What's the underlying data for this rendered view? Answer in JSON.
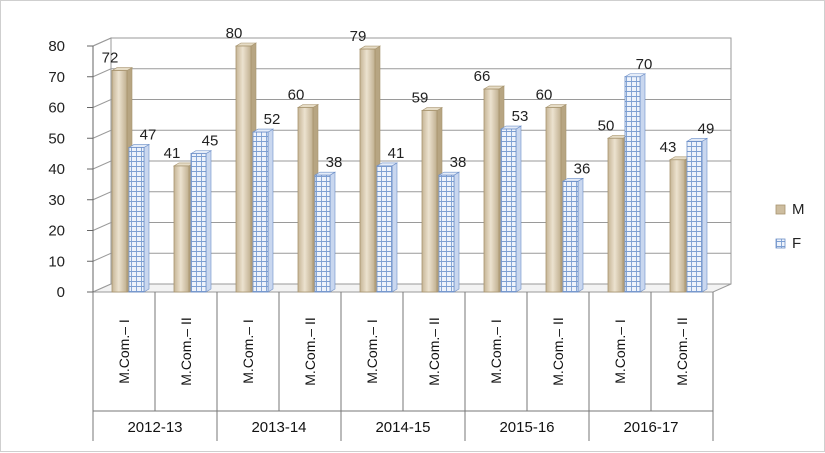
{
  "chart_data": {
    "type": "bar",
    "groups": [
      "2012-13",
      "2013-14",
      "2014-15",
      "2015-16",
      "2016-17"
    ],
    "categories": [
      "M.Com.– I",
      "M.Com.– II",
      "M.Com.– I",
      "M.Com.– II",
      "M.Com.– I",
      "M.Com.– II",
      "M.Com.– I",
      "M.Com.– II",
      "M.Com.– I",
      "M.Com.– II"
    ],
    "series": [
      {
        "name": "M",
        "values": [
          72,
          41,
          80,
          60,
          79,
          59,
          66,
          60,
          50,
          43
        ],
        "color": "#d9cbb0"
      },
      {
        "name": "F",
        "values": [
          47,
          45,
          52,
          38,
          41,
          38,
          53,
          36,
          70,
          49
        ],
        "color": "#dbe6f6"
      }
    ],
    "ylim": [
      0,
      80
    ],
    "yticks": [
      "0",
      "10",
      "20",
      "30",
      "40",
      "50",
      "60",
      "70",
      "80"
    ],
    "grid": true,
    "legend_position": "right",
    "title": "",
    "xlabel": "",
    "ylabel": ""
  }
}
